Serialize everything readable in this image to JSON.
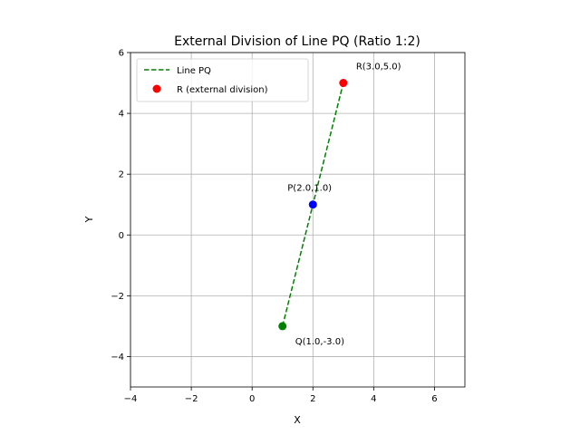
{
  "chart_data": {
    "type": "scatter",
    "title": "External Division of Line PQ (Ratio 1:2)",
    "xlabel": "X",
    "ylabel": "Y",
    "xlim": [
      -4,
      7
    ],
    "ylim": [
      -5,
      6
    ],
    "xticks": [
      -4,
      -2,
      0,
      2,
      4,
      6
    ],
    "yticks": [
      -4,
      -2,
      0,
      2,
      4,
      6
    ],
    "xtick_labels": [
      "−4",
      "−2",
      "0",
      "2",
      "4",
      "6"
    ],
    "ytick_labels": [
      "−4",
      "−2",
      "0",
      "2",
      "4",
      "6"
    ],
    "grid": true,
    "legend_position": "top-left",
    "line": {
      "name": "Line PQ",
      "style": "dashed",
      "color": "#008000",
      "x": [
        1,
        3
      ],
      "y": [
        -3,
        5
      ]
    },
    "points": [
      {
        "label": "P(2.0,1.0)",
        "x": 2,
        "y": 1,
        "color": "#0000ff"
      },
      {
        "label": "Q(1.0,-3.0)",
        "x": 1,
        "y": -3,
        "color": "#008000"
      },
      {
        "label": "R(3.0,5.0)",
        "x": 3,
        "y": 5,
        "color": "#ff0000"
      }
    ],
    "legend": [
      {
        "label": "Line PQ",
        "kind": "dashed-line",
        "color": "#008000"
      },
      {
        "label": "R (external division)",
        "kind": "marker",
        "color": "#ff0000"
      }
    ]
  }
}
